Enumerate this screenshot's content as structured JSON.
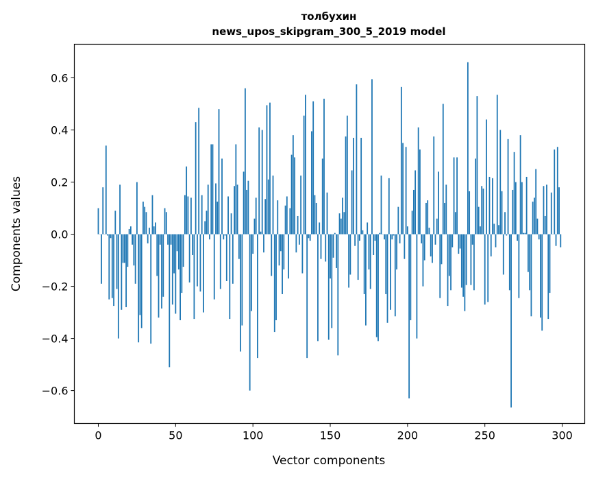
{
  "chart_data": {
    "type": "bar",
    "title_line1": "толбухин",
    "title_line2": "news_upos_skipgram_300_5_2019 model",
    "xlabel": "Vector components",
    "ylabel": "Components values",
    "xlim": [
      -15.5,
      314.6
    ],
    "ylim": [
      -0.726,
      0.729
    ],
    "xticks": [
      0,
      50,
      100,
      150,
      200,
      250,
      300
    ],
    "xtick_labels": [
      "0",
      "50",
      "100",
      "150",
      "200",
      "250",
      "300"
    ],
    "yticks": [
      -0.6,
      -0.4,
      -0.2,
      0.0,
      0.2,
      0.4,
      0.6
    ],
    "ytick_labels": [
      "−0.6",
      "−0.4",
      "−0.2",
      "0.0",
      "0.2",
      "0.4",
      "0.6"
    ],
    "grid": false,
    "bar_color": "#1f77b4",
    "values": [
      0.1,
      0.0,
      -0.19,
      0.18,
      0.0,
      0.34,
      -0.005,
      -0.25,
      -0.015,
      -0.245,
      -0.275,
      0.09,
      -0.21,
      -0.4,
      0.19,
      -0.29,
      -0.11,
      -0.11,
      -0.28,
      -0.125,
      0.02,
      0.03,
      -0.04,
      -0.12,
      -0.19,
      0.2,
      -0.415,
      -0.31,
      -0.36,
      0.125,
      0.105,
      0.085,
      -0.035,
      0.025,
      -0.42,
      0.15,
      0.03,
      0.045,
      -0.16,
      -0.32,
      -0.04,
      -0.285,
      -0.24,
      0.1,
      0.085,
      -0.04,
      -0.51,
      -0.04,
      -0.27,
      -0.15,
      -0.305,
      -0.065,
      -0.135,
      -0.33,
      -0.225,
      -0.125,
      0.15,
      0.26,
      0.145,
      -0.185,
      0.14,
      -0.08,
      -0.325,
      0.43,
      -0.2,
      0.485,
      -0.22,
      0.15,
      -0.3,
      0.05,
      0.09,
      0.19,
      -0.02,
      0.345,
      0.345,
      -0.25,
      0.195,
      0.125,
      0.48,
      -0.21,
      0.29,
      -0.02,
      -0.005,
      -0.18,
      0.145,
      -0.325,
      0.08,
      -0.19,
      0.185,
      0.345,
      0.19,
      -0.095,
      -0.45,
      -0.35,
      0.24,
      0.56,
      0.17,
      0.205,
      -0.6,
      -0.295,
      -0.075,
      0.06,
      0.14,
      -0.475,
      0.41,
      0.01,
      0.4,
      -0.07,
      0.135,
      0.495,
      0.21,
      0.505,
      -0.16,
      0.225,
      -0.375,
      -0.33,
      0.13,
      -0.12,
      -0.065,
      -0.23,
      -0.135,
      0.11,
      0.145,
      -0.17,
      0.1,
      0.305,
      0.38,
      0.295,
      -0.07,
      0.07,
      -0.04,
      0.225,
      -0.15,
      0.455,
      0.535,
      -0.475,
      -0.015,
      -0.025,
      0.395,
      0.51,
      0.15,
      0.12,
      -0.41,
      0.045,
      -0.095,
      0.29,
      0.52,
      -0.105,
      0.16,
      -0.405,
      -0.17,
      -0.36,
      -0.09,
      0.005,
      -0.13,
      -0.465,
      0.08,
      0.06,
      0.14,
      0.085,
      0.375,
      0.455,
      -0.205,
      -0.155,
      0.245,
      0.37,
      -0.045,
      0.575,
      -0.175,
      -0.025,
      0.37,
      0.015,
      -0.23,
      -0.35,
      0.045,
      -0.135,
      -0.21,
      0.595,
      -0.08,
      -0.025,
      -0.395,
      -0.41,
      0.005,
      0.225,
      0.0,
      -0.02,
      -0.23,
      -0.34,
      0.215,
      -0.29,
      -0.02,
      -0.005,
      -0.315,
      -0.135,
      0.105,
      -0.035,
      0.565,
      0.35,
      -0.095,
      0.335,
      0.03,
      -0.63,
      -0.33,
      0.09,
      0.17,
      0.245,
      -0.4,
      0.41,
      0.325,
      -0.035,
      -0.2,
      -0.1,
      0.12,
      0.13,
      0.025,
      -0.085,
      -0.11,
      0.375,
      -0.04,
      0.06,
      0.24,
      -0.245,
      -0.115,
      0.5,
      0.12,
      0.19,
      -0.275,
      -0.16,
      -0.215,
      -0.05,
      0.295,
      0.085,
      0.295,
      -0.075,
      -0.055,
      -0.205,
      -0.24,
      -0.295,
      -0.195,
      0.66,
      0.165,
      -0.195,
      -0.04,
      -0.215,
      0.29,
      0.53,
      0.105,
      0.03,
      0.185,
      0.175,
      -0.27,
      0.44,
      -0.26,
      0.22,
      -0.085,
      0.215,
      0.04,
      -0.05,
      0.535,
      0.035,
      0.4,
      0.165,
      -0.155,
      0.085,
      -0.005,
      0.365,
      -0.215,
      -0.665,
      0.17,
      0.315,
      0.2,
      -0.025,
      -0.245,
      0.38,
      0.2,
      0.005,
      0.005,
      0.22,
      -0.145,
      -0.215,
      -0.315,
      0.125,
      0.14,
      0.25,
      0.06,
      -0.02,
      -0.32,
      -0.37,
      0.185,
      0.07,
      0.19,
      -0.325,
      -0.225,
      0.16,
      0.0,
      0.325,
      -0.045,
      0.335,
      0.18,
      -0.05
    ]
  }
}
